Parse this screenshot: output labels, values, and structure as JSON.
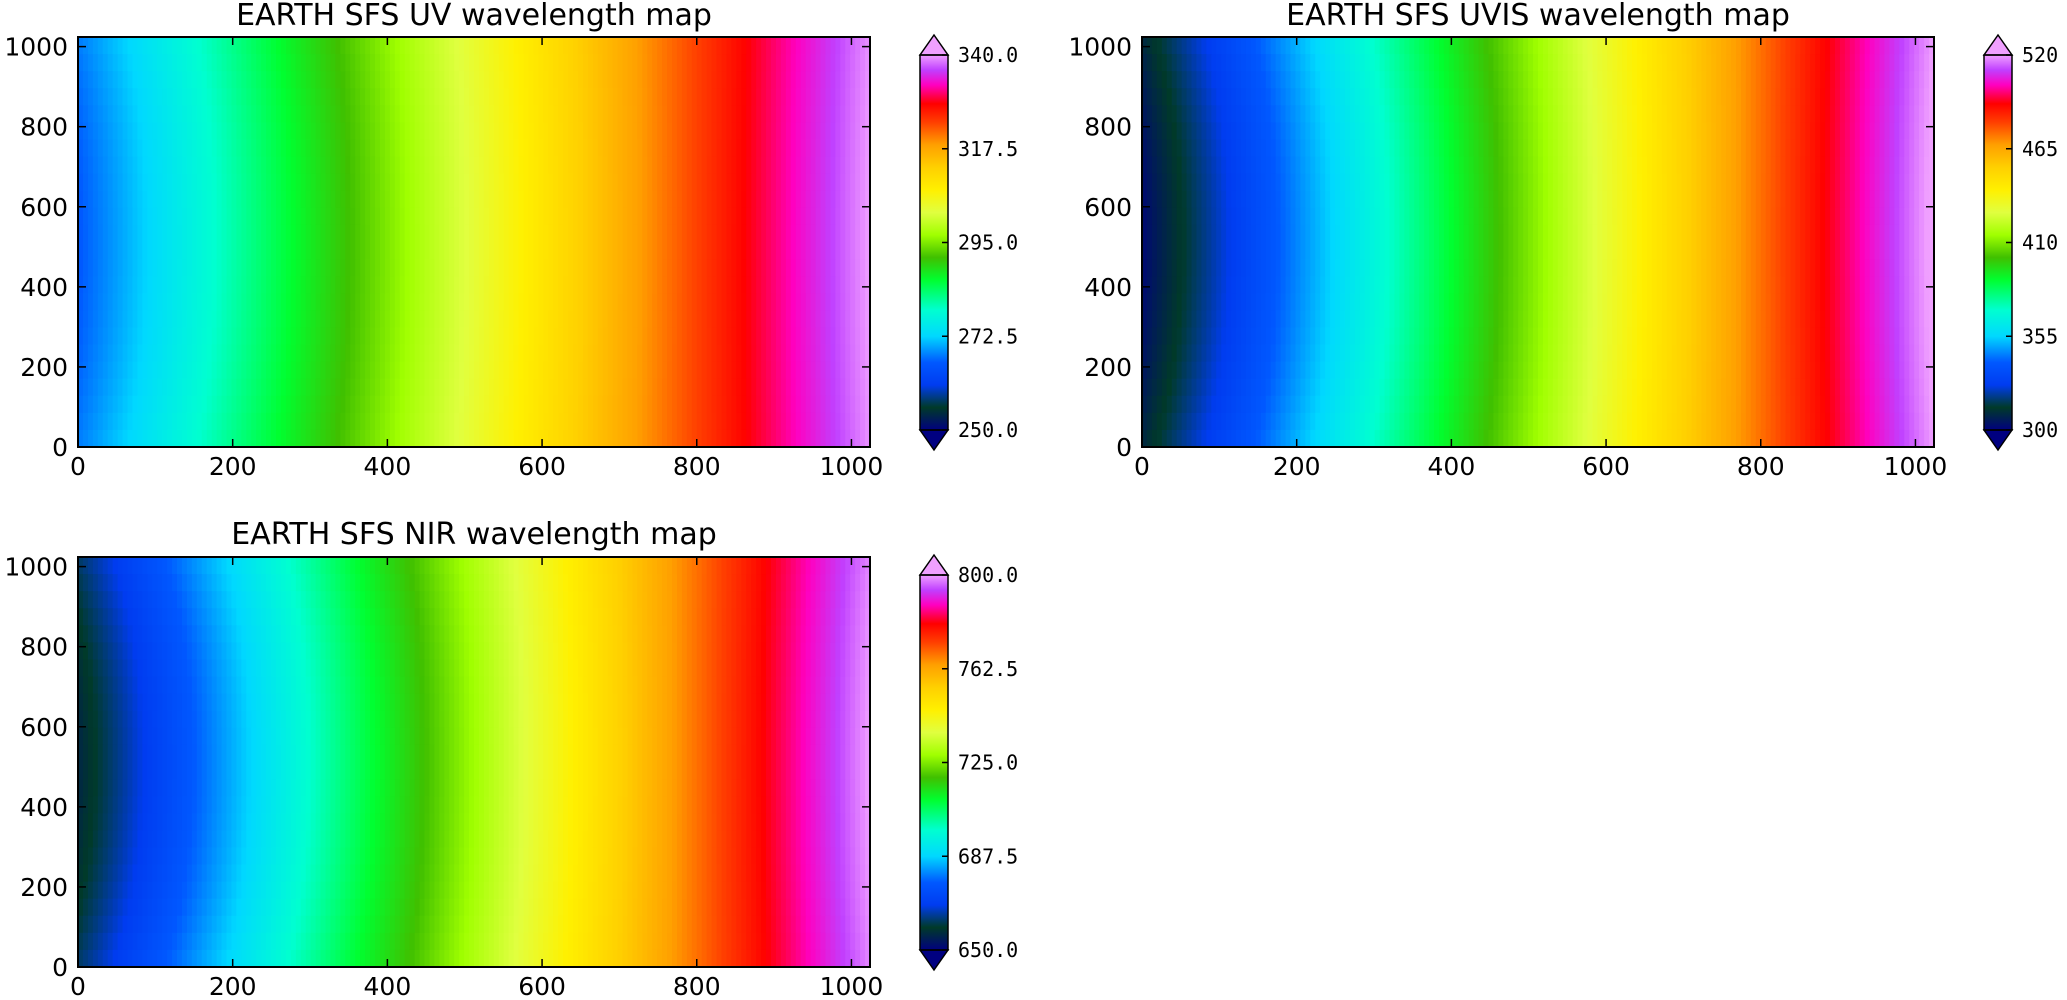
{
  "chart_data": [
    {
      "type": "heatmap",
      "title": "EARTH SFS UV wavelength map",
      "xlim": [
        0,
        1024
      ],
      "ylim": [
        0,
        1024
      ],
      "x_ticks": [
        0,
        200,
        400,
        600,
        800,
        1000
      ],
      "y_ticks": [
        0,
        200,
        400,
        600,
        800,
        1000
      ],
      "x_tick_labels": [
        "0",
        "200",
        "400",
        "600",
        "800",
        "1000"
      ],
      "y_tick_labels": [
        "0",
        "200",
        "400",
        "600",
        "800",
        "1000"
      ],
      "colorbar": {
        "min": 250.0,
        "max": 340.0,
        "ticks": [
          250.0,
          272.5,
          295.0,
          317.5,
          340.0
        ],
        "tick_labels": [
          "250.0",
          "272.5",
          "295.0",
          "317.5",
          "340.0"
        ],
        "extend": "both"
      },
      "value_range": [
        266,
        340
      ],
      "curvature": 0.04,
      "gradient_axis": "x"
    },
    {
      "type": "heatmap",
      "title": "EARTH SFS UVIS wavelength map",
      "xlim": [
        0,
        1024
      ],
      "ylim": [
        0,
        1024
      ],
      "x_ticks": [
        0,
        200,
        400,
        600,
        800,
        1000
      ],
      "y_ticks": [
        0,
        200,
        400,
        600,
        800,
        1000
      ],
      "x_tick_labels": [
        "0",
        "200",
        "400",
        "600",
        "800",
        "1000"
      ],
      "y_tick_labels": [
        "0",
        "200",
        "400",
        "600",
        "800",
        "1000"
      ],
      "colorbar": {
        "min": 300,
        "max": 520,
        "ticks": [
          300,
          355,
          410,
          465,
          520
        ],
        "tick_labels": [
          "300",
          "355",
          "410",
          "465",
          "520"
        ],
        "extend": "both"
      },
      "value_range": [
        302,
        522
      ],
      "curvature": 0.05,
      "gradient_axis": "x"
    },
    {
      "type": "heatmap",
      "title": "EARTH SFS NIR wavelength map",
      "xlim": [
        0,
        1024
      ],
      "ylim": [
        0,
        1024
      ],
      "x_ticks": [
        0,
        200,
        400,
        600,
        800,
        1000
      ],
      "y_ticks": [
        0,
        200,
        400,
        600,
        800,
        1000
      ],
      "x_tick_labels": [
        "0",
        "200",
        "400",
        "600",
        "800",
        "1000"
      ],
      "y_tick_labels": [
        "0",
        "200",
        "400",
        "600",
        "800",
        "1000"
      ],
      "colorbar": {
        "min": 650.0,
        "max": 800.0,
        "ticks": [
          650.0,
          687.5,
          725.0,
          762.5,
          800.0
        ],
        "tick_labels": [
          "650.0",
          "687.5",
          "725.0",
          "762.5",
          "800.0"
        ],
        "extend": "both"
      },
      "value_range": [
        656,
        800
      ],
      "curvature": 0.06,
      "gradient_axis": "x"
    }
  ],
  "colormap": {
    "name": "gist_ncar-like",
    "stops": [
      [
        0.0,
        "#000080"
      ],
      [
        0.06,
        "#003a28"
      ],
      [
        0.12,
        "#003cf0"
      ],
      [
        0.18,
        "#0058ff"
      ],
      [
        0.25,
        "#00d8ff"
      ],
      [
        0.32,
        "#00ffd0"
      ],
      [
        0.4,
        "#00ff30"
      ],
      [
        0.46,
        "#40c000"
      ],
      [
        0.52,
        "#a0ff00"
      ],
      [
        0.58,
        "#e0ff40"
      ],
      [
        0.64,
        "#fff000"
      ],
      [
        0.7,
        "#ffd000"
      ],
      [
        0.76,
        "#ffa000"
      ],
      [
        0.82,
        "#ff4000"
      ],
      [
        0.87,
        "#ff0000"
      ],
      [
        0.92,
        "#ff00c0"
      ],
      [
        0.96,
        "#c040ff"
      ],
      [
        1.0,
        "#f0a0ff"
      ]
    ]
  }
}
